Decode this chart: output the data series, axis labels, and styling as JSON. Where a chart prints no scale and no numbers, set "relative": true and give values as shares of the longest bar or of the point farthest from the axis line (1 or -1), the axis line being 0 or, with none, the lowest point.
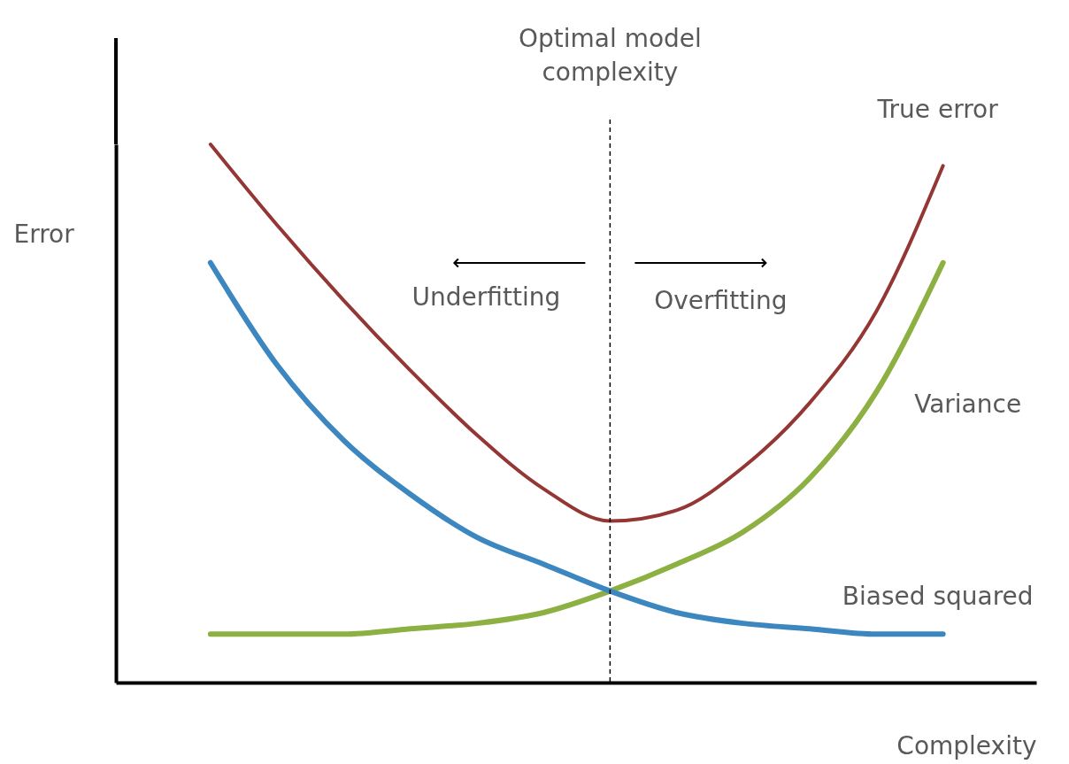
{
  "chart_data": {
    "type": "line",
    "relative": true,
    "tick_labels": false,
    "xlabel": "Complexity",
    "ylabel": "Error",
    "categories": [
      null,
      null,
      null,
      null,
      null,
      null,
      null,
      null,
      null,
      null,
      null,
      null
    ],
    "series": [
      {
        "name": "True error",
        "color": "#943634",
        "values": [
          1.0,
          0.85,
          0.71,
          0.58,
          0.46,
          0.36,
          0.3,
          0.32,
          0.4,
          0.52,
          0.69,
          0.96
        ]
      },
      {
        "name": "Variance",
        "color": "#8db043",
        "values": [
          0.09,
          0.09,
          0.09,
          0.1,
          0.11,
          0.13,
          0.17,
          0.22,
          0.28,
          0.38,
          0.54,
          0.78
        ]
      },
      {
        "name": "Biased squared",
        "color": "#3c87c0",
        "values": [
          0.78,
          0.59,
          0.45,
          0.35,
          0.27,
          0.22,
          0.17,
          0.13,
          0.11,
          0.1,
          0.09,
          0.09
        ]
      }
    ],
    "annotations": [
      "Optimal model complexity",
      "Underfitting",
      "Overfitting"
    ]
  }
}
